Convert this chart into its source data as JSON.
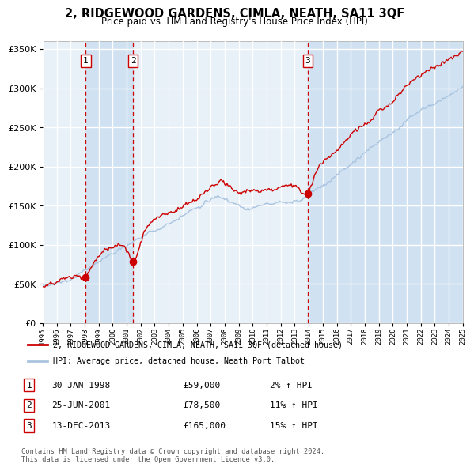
{
  "title": "2, RIDGEWOOD GARDENS, CIMLA, NEATH, SA11 3QF",
  "subtitle": "Price paid vs. HM Land Registry's House Price Index (HPI)",
  "legend_line1": "2, RIDGEWOOD GARDENS, CIMLA, NEATH, SA11 3QF (detached house)",
  "legend_line2": "HPI: Average price, detached house, Neath Port Talbot",
  "sale1_date": "30-JAN-1998",
  "sale1_price": 59000,
  "sale1_hpi": "2% ↑ HPI",
  "sale2_date": "25-JUN-2001",
  "sale2_price": 78500,
  "sale2_hpi": "11% ↑ HPI",
  "sale3_date": "13-DEC-2013",
  "sale3_price": 165000,
  "sale3_hpi": "15% ↑ HPI",
  "copyright_text": "Contains HM Land Registry data © Crown copyright and database right 2024.\nThis data is licensed under the Open Government Licence v3.0.",
  "hpi_color": "#aac4e0",
  "price_color": "#cc0000",
  "vline_color": "#cc0000",
  "shade_color": "#ccdff0",
  "bg_color": "#e8f0f8",
  "grid_color": "#ffffff",
  "ylim": [
    0,
    360000
  ],
  "yticks": [
    0,
    50000,
    100000,
    150000,
    200000,
    250000,
    300000,
    350000
  ],
  "sale1_t": 1998.08,
  "sale2_t": 2001.46,
  "sale3_t": 2013.92
}
